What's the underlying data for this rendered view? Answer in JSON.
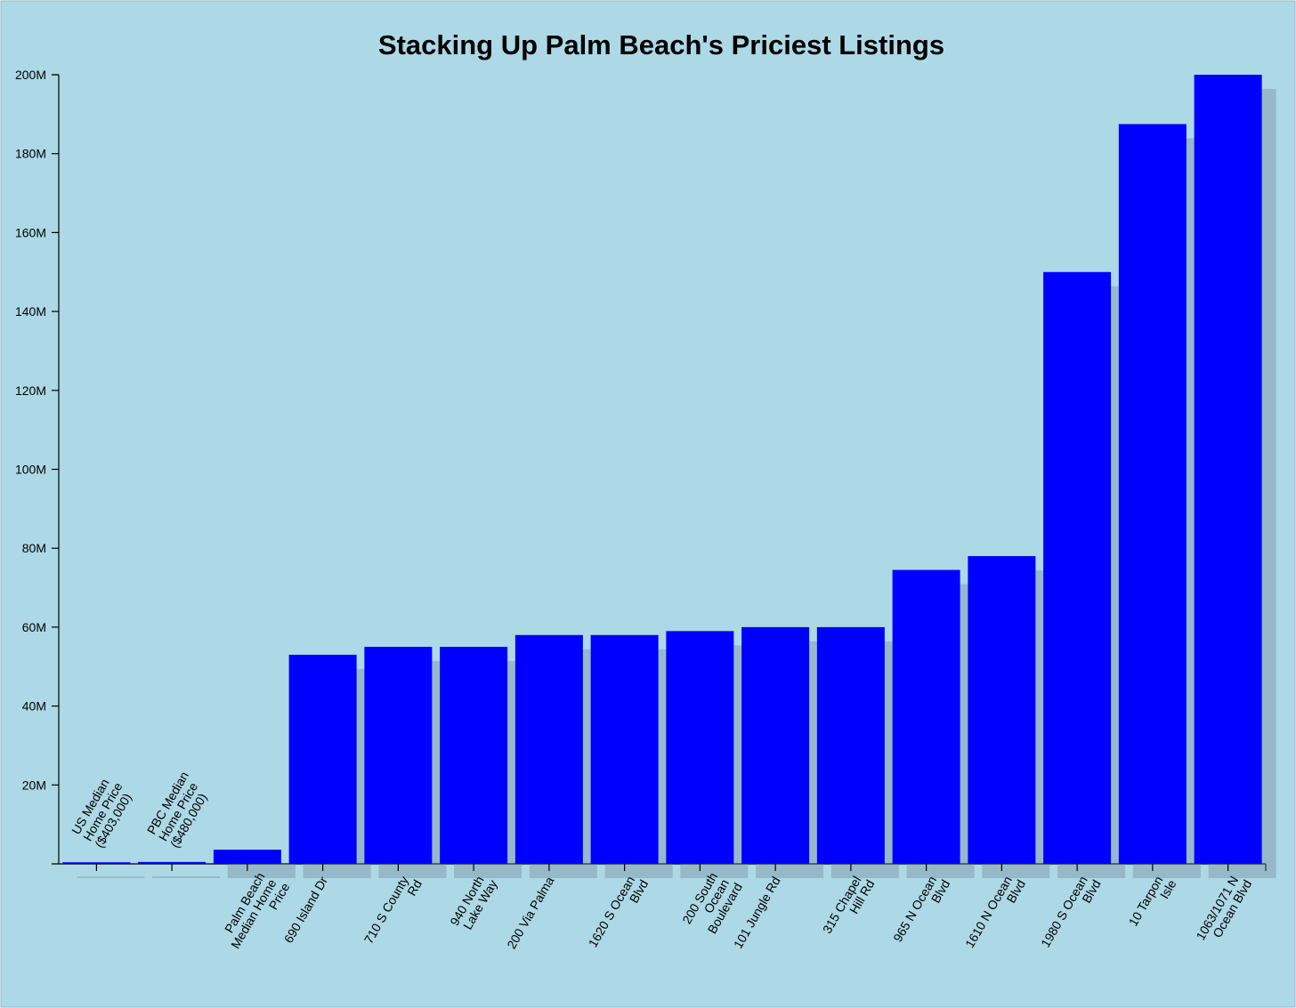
{
  "chart_data": {
    "type": "bar",
    "title": "Stacking Up Palm Beach's Priciest Listings",
    "categories": [
      "US Median Home Price ($403,000)",
      "PBC Median Home Price ($480,000)",
      "Palm Beach Median Home Price",
      "690 Island Dr",
      "710 S County Rd",
      "940 North Lake Way",
      "200 Via Palma",
      "1620 S Ocean Blvd",
      "200 South Ocean Boulevard",
      "101 Jungle Rd",
      "315 Chapel Hill Rd",
      "965 N Ocean Blvd",
      "1610 N Ocean Blvd",
      "1980 S Ocean Blvd",
      "10 Tarpon Isle",
      "1063/1071 N Ocean Blvd"
    ],
    "values": [
      0.403,
      0.48,
      3.6,
      53,
      55,
      55,
      58,
      58,
      59,
      60,
      60,
      74.5,
      78,
      150,
      187.5,
      200
    ],
    "color": "#0000ff",
    "ylim": [
      0,
      200
    ],
    "yticks": [
      {
        "value": 20,
        "label": "20M"
      },
      {
        "value": 40,
        "label": "40M"
      },
      {
        "value": 60,
        "label": "60M"
      },
      {
        "value": 80,
        "label": "80M"
      },
      {
        "value": 100,
        "label": "100M"
      },
      {
        "value": 120,
        "label": "120M"
      },
      {
        "value": 140,
        "label": "140M"
      },
      {
        "value": 160,
        "label": "160M"
      },
      {
        "value": 180,
        "label": "180M"
      },
      {
        "value": 200,
        "label": "200M"
      }
    ]
  }
}
